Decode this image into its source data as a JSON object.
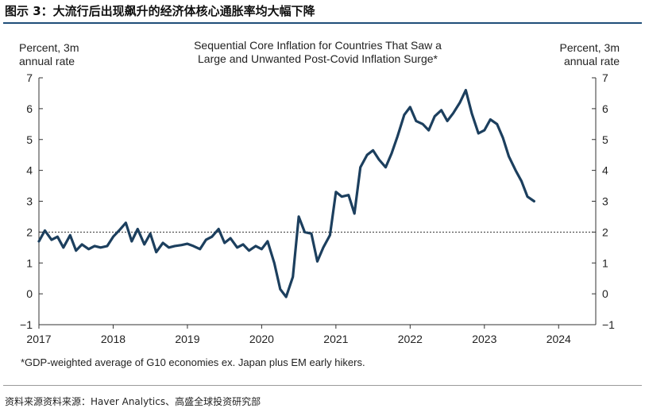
{
  "figure": {
    "title": "图示 3：大流行后出现飙升的经济体核心通胀率均大幅下降",
    "source": "资料来源资料来源：Haver Analytics、高盛全球投资研究部"
  },
  "chart_data": {
    "type": "line",
    "title_line1": "Sequential Core Inflation for Countries That Saw a",
    "title_line2": "Large and Unwanted Post-Covid Inflation Surge*",
    "ylabel_left_line1": "Percent, 3m",
    "ylabel_left_line2": "annual rate",
    "ylabel_right_line1": "Percent, 3m",
    "ylabel_right_line2": "annual rate",
    "footnote": "*GDP-weighted average of G10 economies ex. Japan plus EM early hikers.",
    "xlim": [
      2017.0,
      2024.5
    ],
    "ylim": [
      -1,
      7
    ],
    "x_ticks": [
      2017,
      2018,
      2019,
      2020,
      2021,
      2022,
      2023,
      2024
    ],
    "y_ticks": [
      -1,
      0,
      1,
      2,
      3,
      4,
      5,
      6,
      7
    ],
    "y_tick_labels": [
      "−1",
      "0",
      "1",
      "2",
      "3",
      "4",
      "5",
      "6",
      "7"
    ],
    "reference_line": {
      "y": 2,
      "style": "dotted"
    },
    "grid": false,
    "series": [
      {
        "color": "#1c3f5e",
        "x": [
          2017.0,
          2017.08,
          2017.17,
          2017.25,
          2017.33,
          2017.42,
          2017.5,
          2017.58,
          2017.67,
          2017.75,
          2017.83,
          2017.92,
          2018.0,
          2018.08,
          2018.17,
          2018.25,
          2018.33,
          2018.42,
          2018.5,
          2018.58,
          2018.67,
          2018.75,
          2018.83,
          2018.92,
          2019.0,
          2019.08,
          2019.17,
          2019.25,
          2019.33,
          2019.42,
          2019.5,
          2019.58,
          2019.67,
          2019.75,
          2019.83,
          2019.92,
          2020.0,
          2020.08,
          2020.17,
          2020.25,
          2020.33,
          2020.42,
          2020.5,
          2020.58,
          2020.67,
          2020.75,
          2020.83,
          2020.92,
          2021.0,
          2021.08,
          2021.17,
          2021.25,
          2021.33,
          2021.42,
          2021.5,
          2021.58,
          2021.67,
          2021.75,
          2021.83,
          2021.92,
          2022.0,
          2022.08,
          2022.17,
          2022.25,
          2022.33,
          2022.42,
          2022.5,
          2022.58,
          2022.67,
          2022.75,
          2022.83,
          2022.92,
          2023.0,
          2023.08,
          2023.17,
          2023.25,
          2023.33,
          2023.42,
          2023.5,
          2023.58,
          2023.67
        ],
        "y": [
          1.7,
          2.05,
          1.75,
          1.85,
          1.5,
          1.9,
          1.4,
          1.6,
          1.45,
          1.55,
          1.5,
          1.55,
          1.85,
          2.05,
          2.3,
          1.7,
          2.1,
          1.6,
          1.95,
          1.35,
          1.65,
          1.5,
          1.55,
          1.58,
          1.62,
          1.55,
          1.45,
          1.75,
          1.85,
          2.1,
          1.65,
          1.8,
          1.5,
          1.6,
          1.4,
          1.55,
          1.45,
          1.7,
          1.0,
          0.15,
          -0.1,
          0.55,
          2.5,
          2.0,
          1.95,
          1.05,
          1.5,
          1.9,
          3.3,
          3.15,
          3.2,
          2.6,
          4.1,
          4.5,
          4.65,
          4.35,
          4.1,
          4.55,
          5.1,
          5.8,
          6.05,
          5.6,
          5.5,
          5.3,
          5.75,
          5.95,
          5.6,
          5.85,
          6.2,
          6.6,
          5.85,
          5.2,
          5.3,
          5.65,
          5.5,
          5.05,
          4.45,
          4.0,
          3.65,
          3.15,
          3.0
        ]
      }
    ]
  }
}
